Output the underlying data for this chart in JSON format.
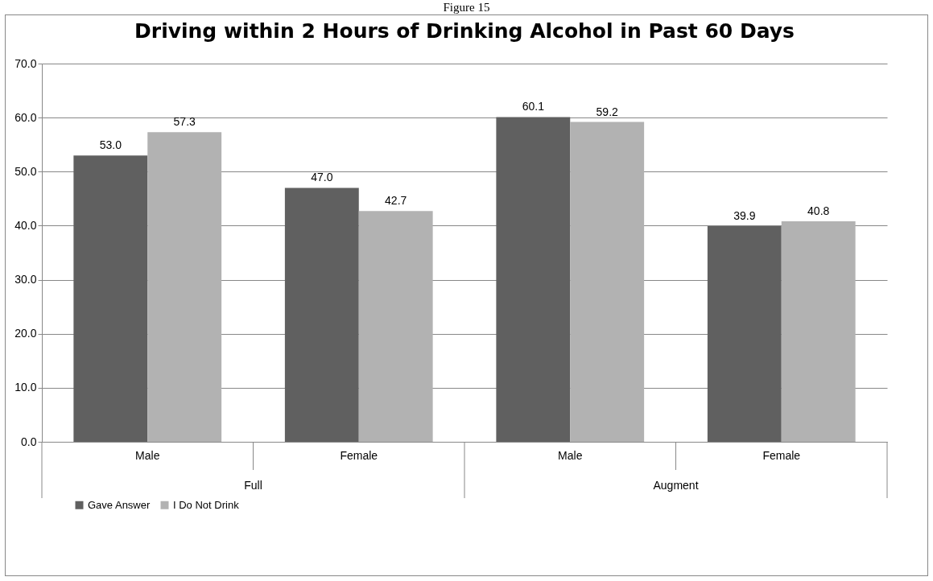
{
  "chart_data": {
    "type": "bar",
    "title": "Driving within 2 Hours of Drinking Alcohol in Past 60 Days",
    "categories": [
      "Male",
      "Female",
      "Male",
      "Female"
    ],
    "series": [
      {
        "name": "Gave Answer",
        "color": "#606060",
        "values": [
          53.0,
          47.0,
          60.1,
          39.9
        ],
        "value_labels": [
          "53.0",
          "47.0",
          "60.1",
          "39.9"
        ]
      },
      {
        "name": "I Do Not Drink",
        "color": "#b2b2b2",
        "values": [
          57.3,
          42.7,
          59.2,
          40.8
        ],
        "value_labels": [
          "57.3",
          "42.7",
          "59.2",
          "40.8"
        ]
      }
    ],
    "ylim": [
      0,
      70
    ],
    "yticks": [
      {
        "value": 0,
        "label": "0.0"
      },
      {
        "value": 10,
        "label": "10.0"
      },
      {
        "value": 20,
        "label": "20.0"
      },
      {
        "value": 30,
        "label": "30.0"
      },
      {
        "value": 40,
        "label": "40.0"
      },
      {
        "value": 50,
        "label": "50.0"
      },
      {
        "value": 60,
        "label": "60.0"
      },
      {
        "value": 70,
        "label": "70.0"
      }
    ],
    "grid": "y",
    "legend": "bottom",
    "annotations": [
      "Figure 15",
      "Full",
      "Augment"
    ]
  }
}
